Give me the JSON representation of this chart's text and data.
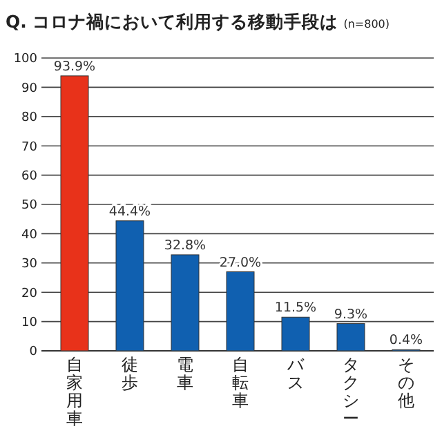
{
  "chart_data": {
    "type": "bar",
    "title": "Q. コロナ禍において利用する移動手段は",
    "annotations": [
      "(n=800)"
    ],
    "categories": [
      "自家用車",
      "徒歩",
      "電車",
      "自転車",
      "バス",
      "タクシー",
      "その他"
    ],
    "values": [
      93.9,
      44.4,
      32.8,
      27.0,
      11.5,
      9.3,
      0.4
    ],
    "value_labels": [
      "93.9%",
      "44.4%",
      "32.8%",
      "27.0%",
      "11.5%",
      "9.3%",
      "0.4%"
    ],
    "colors": [
      "#e8321a",
      "#1060b0",
      "#1060b0",
      "#1060b0",
      "#1060b0",
      "#1060b0",
      "#1060b0"
    ],
    "ylim": [
      0,
      100
    ],
    "yticks": [
      0,
      10,
      20,
      30,
      40,
      50,
      60,
      70,
      80,
      90,
      100
    ],
    "grid": "y"
  }
}
